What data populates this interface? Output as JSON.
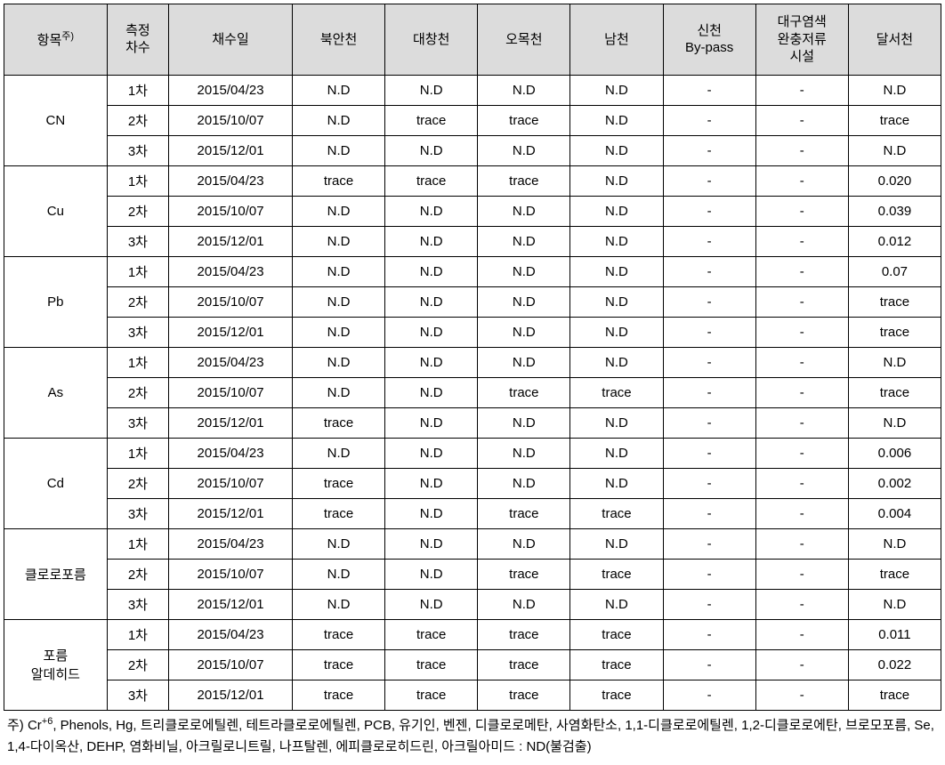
{
  "columns": {
    "c0": "항목",
    "c0sup": "주)",
    "c1": "측정\n차수",
    "c2": "채수일",
    "c3": "북안천",
    "c4": "대창천",
    "c5": "오목천",
    "c6": "남천",
    "c7": "신천\nBy-pass",
    "c8": "대구염색\n완충저류\n시설",
    "c9": "달서천"
  },
  "groups": [
    {
      "item": "CN",
      "rows": [
        {
          "round": "1차",
          "date": "2015/04/23",
          "v": [
            "N.D",
            "N.D",
            "N.D",
            "N.D",
            "-",
            "-",
            "N.D"
          ]
        },
        {
          "round": "2차",
          "date": "2015/10/07",
          "v": [
            "N.D",
            "trace",
            "trace",
            "N.D",
            "-",
            "-",
            "trace"
          ]
        },
        {
          "round": "3차",
          "date": "2015/12/01",
          "v": [
            "N.D",
            "N.D",
            "N.D",
            "N.D",
            "-",
            "-",
            "N.D"
          ]
        }
      ]
    },
    {
      "item": "Cu",
      "rows": [
        {
          "round": "1차",
          "date": "2015/04/23",
          "v": [
            "trace",
            "trace",
            "trace",
            "N.D",
            "-",
            "-",
            "0.020"
          ]
        },
        {
          "round": "2차",
          "date": "2015/10/07",
          "v": [
            "N.D",
            "N.D",
            "N.D",
            "N.D",
            "-",
            "-",
            "0.039"
          ]
        },
        {
          "round": "3차",
          "date": "2015/12/01",
          "v": [
            "N.D",
            "N.D",
            "N.D",
            "N.D",
            "-",
            "-",
            "0.012"
          ]
        }
      ]
    },
    {
      "item": "Pb",
      "rows": [
        {
          "round": "1차",
          "date": "2015/04/23",
          "v": [
            "N.D",
            "N.D",
            "N.D",
            "N.D",
            "-",
            "-",
            "0.07"
          ]
        },
        {
          "round": "2차",
          "date": "2015/10/07",
          "v": [
            "N.D",
            "N.D",
            "N.D",
            "N.D",
            "-",
            "-",
            "trace"
          ]
        },
        {
          "round": "3차",
          "date": "2015/12/01",
          "v": [
            "N.D",
            "N.D",
            "N.D",
            "N.D",
            "-",
            "-",
            "trace"
          ]
        }
      ]
    },
    {
      "item": "As",
      "rows": [
        {
          "round": "1차",
          "date": "2015/04/23",
          "v": [
            "N.D",
            "N.D",
            "N.D",
            "N.D",
            "-",
            "-",
            "N.D"
          ]
        },
        {
          "round": "2차",
          "date": "2015/10/07",
          "v": [
            "N.D",
            "N.D",
            "trace",
            "trace",
            "-",
            "-",
            "trace"
          ]
        },
        {
          "round": "3차",
          "date": "2015/12/01",
          "v": [
            "trace",
            "N.D",
            "N.D",
            "N.D",
            "-",
            "-",
            "N.D"
          ]
        }
      ]
    },
    {
      "item": "Cd",
      "rows": [
        {
          "round": "1차",
          "date": "2015/04/23",
          "v": [
            "N.D",
            "N.D",
            "N.D",
            "N.D",
            "-",
            "-",
            "0.006"
          ]
        },
        {
          "round": "2차",
          "date": "2015/10/07",
          "v": [
            "trace",
            "N.D",
            "N.D",
            "N.D",
            "-",
            "-",
            "0.002"
          ]
        },
        {
          "round": "3차",
          "date": "2015/12/01",
          "v": [
            "trace",
            "N.D",
            "trace",
            "trace",
            "-",
            "-",
            "0.004"
          ]
        }
      ]
    },
    {
      "item": "클로로포름",
      "rows": [
        {
          "round": "1차",
          "date": "2015/04/23",
          "v": [
            "N.D",
            "N.D",
            "N.D",
            "N.D",
            "-",
            "-",
            "N.D"
          ]
        },
        {
          "round": "2차",
          "date": "2015/10/07",
          "v": [
            "N.D",
            "N.D",
            "trace",
            "trace",
            "-",
            "-",
            "trace"
          ]
        },
        {
          "round": "3차",
          "date": "2015/12/01",
          "v": [
            "N.D",
            "N.D",
            "N.D",
            "N.D",
            "-",
            "-",
            "N.D"
          ]
        }
      ]
    },
    {
      "item": "포름\n알데히드",
      "rows": [
        {
          "round": "1차",
          "date": "2015/04/23",
          "v": [
            "trace",
            "trace",
            "trace",
            "trace",
            "-",
            "-",
            "0.011"
          ]
        },
        {
          "round": "2차",
          "date": "2015/10/07",
          "v": [
            "trace",
            "trace",
            "trace",
            "trace",
            "-",
            "-",
            "0.022"
          ]
        },
        {
          "round": "3차",
          "date": "2015/12/01",
          "v": [
            "trace",
            "trace",
            "trace",
            "trace",
            "-",
            "-",
            "trace"
          ]
        }
      ]
    }
  ],
  "footnote": {
    "prefix": "주) Cr",
    "sup": "+6",
    "rest": ", Phenols, Hg, 트리클로로에틸렌, 테트라클로로에틸렌, PCB, 유기인, 벤젠, 디클로로메탄, 사염화탄소, 1,1-디클로로에틸렌, 1,2-디클로로에탄, 브로모포름, Se, 1,4-다이옥산, DEHP, 염화비닐, 아크릴로니트릴, 나프탈렌, 에피클로로히드린, 아크릴아미드 : ND(불검출)"
  },
  "style": {
    "header_bg": "#dcdcdc",
    "border_color": "#000000",
    "bg_color": "#ffffff",
    "text_color": "#000000",
    "font_size_cell": 15,
    "font_size_header": 15,
    "font_size_footnote": 15
  }
}
